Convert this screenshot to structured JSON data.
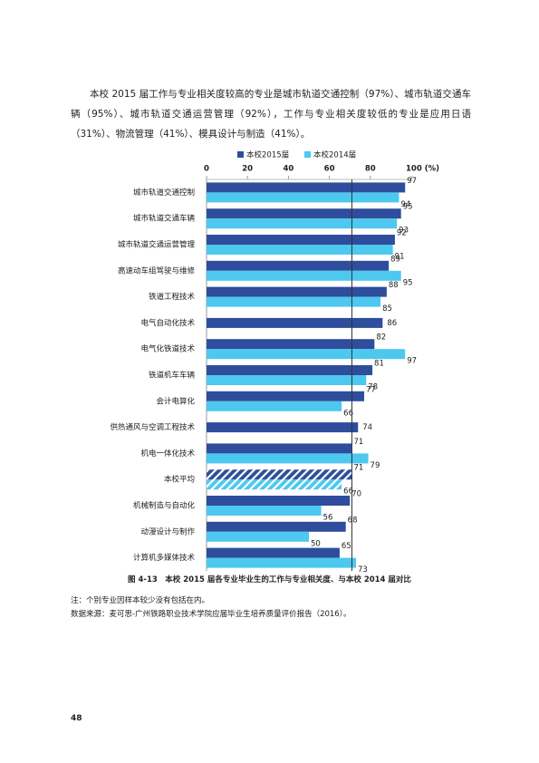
{
  "paragraph": "本校 2015 届工作与专业相关度较高的专业是城市轨道交通控制（97%）、城市轨道交通车辆（95%）、城市轨道交通运营管理（92%），工作与专业相关度较低的专业是应用日语（31%）、物流管理（41%）、模具设计与制造（41%）。",
  "chart_data": {
    "type": "bar",
    "orientation": "horizontal",
    "categories": [
      "城市轨道交通控制",
      "城市轨道交通车辆",
      "城市轨道交通运营管理",
      "高速动车组驾驶与维修",
      "铁道工程技术",
      "电气自动化技术",
      "电气化铁道技术",
      "铁道机车车辆",
      "会计电算化",
      "供热通风与空调工程技术",
      "机电一体化技术",
      "本校平均",
      "机械制造与自动化",
      "动漫设计与制作",
      "计算机多媒体技术"
    ],
    "series": [
      {
        "name": "本校2015届",
        "color": "#2e4d9c",
        "values": [
          97,
          95,
          92,
          89,
          88,
          86,
          82,
          81,
          77,
          74,
          71,
          71,
          70,
          68,
          65
        ]
      },
      {
        "name": "本校2014届",
        "color": "#4dc8ee",
        "values": [
          94,
          93,
          91,
          95,
          85,
          null,
          97,
          78,
          66,
          null,
          79,
          66,
          56,
          50,
          73
        ]
      }
    ],
    "hatched_categories": [
      11
    ],
    "reference_x": 71,
    "xlim": [
      0,
      100
    ],
    "xticks": [
      0,
      20,
      40,
      60,
      80,
      {
        "value": 100,
        "label": "100 (%)"
      }
    ],
    "legend": "top"
  },
  "caption": "图 4-13　本校 2015 届各专业毕业生的工作与专业相关度、与本校 2014 届对比",
  "notes": [
    "注：个别专业因样本较少没有包括在内。",
    "数据来源：麦可思-广州铁路职业技术学院应届毕业生培养质量评价报告（2016）。"
  ],
  "page_number": "48"
}
